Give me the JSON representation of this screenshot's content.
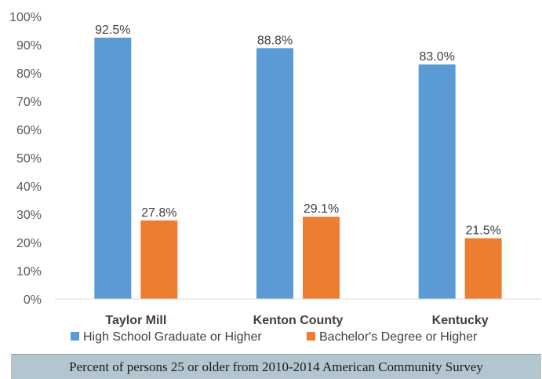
{
  "chart_data": {
    "type": "bar",
    "title": "",
    "xlabel": "",
    "ylabel": "",
    "categories": [
      "Taylor Mill",
      "Kenton County",
      "Kentucky"
    ],
    "series": [
      {
        "name": "High School Graduate or Higher",
        "values": [
          92.5,
          88.8,
          83.0
        ],
        "labels": [
          "92.5%",
          "88.8%",
          "83.0%"
        ],
        "color": "#5b9bd5"
      },
      {
        "name": "Bachelor's Degree or Higher",
        "values": [
          27.8,
          29.1,
          21.5
        ],
        "labels": [
          "27.8%",
          "29.1%",
          "21.5%"
        ],
        "color": "#ed7d31"
      }
    ],
    "ylim": [
      0,
      100
    ],
    "yticks": [
      "0%",
      "10%",
      "20%",
      "30%",
      "40%",
      "50%",
      "60%",
      "70%",
      "80%",
      "90%",
      "100%"
    ],
    "grid": false,
    "legend_position": "bottom"
  },
  "footer": {
    "caption": "Percent of persons 25 or older from 2010-2014 American Community Survey"
  }
}
